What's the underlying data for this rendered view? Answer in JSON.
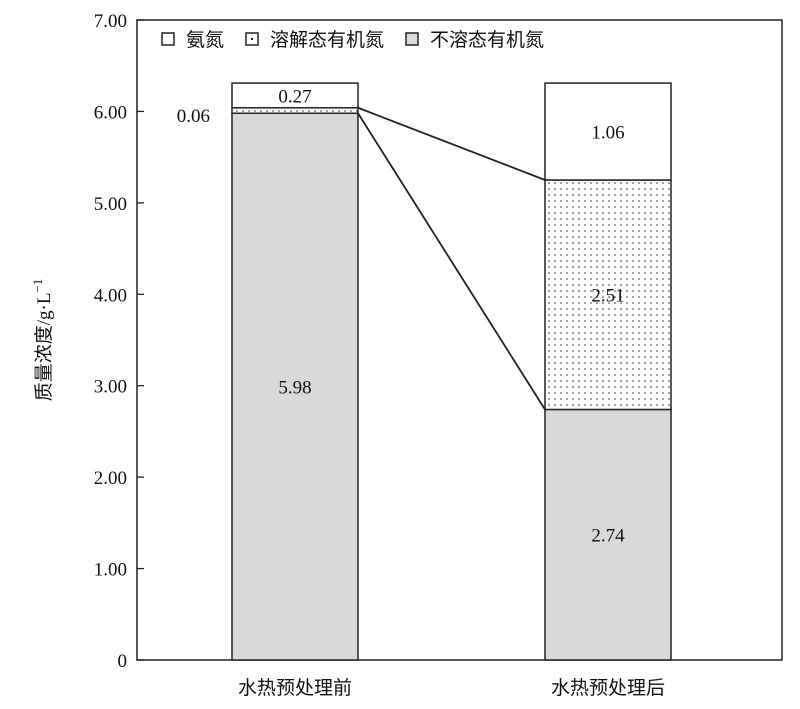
{
  "chart_data": {
    "type": "bar",
    "stacked": true,
    "title": "",
    "xlabel": "",
    "ylabel": "质量浓度/g·L",
    "ylabel_superscript": "−1",
    "ylim": [
      0,
      7
    ],
    "yticks": [
      "0",
      "1.00",
      "2.00",
      "3.00",
      "4.00",
      "5.00",
      "6.00",
      "7.00"
    ],
    "categories": [
      "水热预处理前",
      "水热预处理后"
    ],
    "series": [
      {
        "name": "不溶态有机氮",
        "values": [
          5.98,
          2.74
        ],
        "labels": [
          "5.98",
          "2.74"
        ],
        "fill": "gray"
      },
      {
        "name": "溶解态有机氮",
        "values": [
          0.06,
          2.51
        ],
        "labels": [
          "0.06",
          "2.51"
        ],
        "fill": "dotted"
      },
      {
        "name": "氨氮",
        "values": [
          0.27,
          1.06
        ],
        "labels": [
          "0.27",
          "1.06"
        ],
        "fill": "white"
      }
    ],
    "legend_order": [
      "氨氮",
      "溶解态有机氮",
      "不溶态有机氮"
    ],
    "legend_placement": "top",
    "grid": false,
    "colors": {
      "gray": "#d9d9d9",
      "white": "#ffffff",
      "line": "#222222"
    }
  }
}
